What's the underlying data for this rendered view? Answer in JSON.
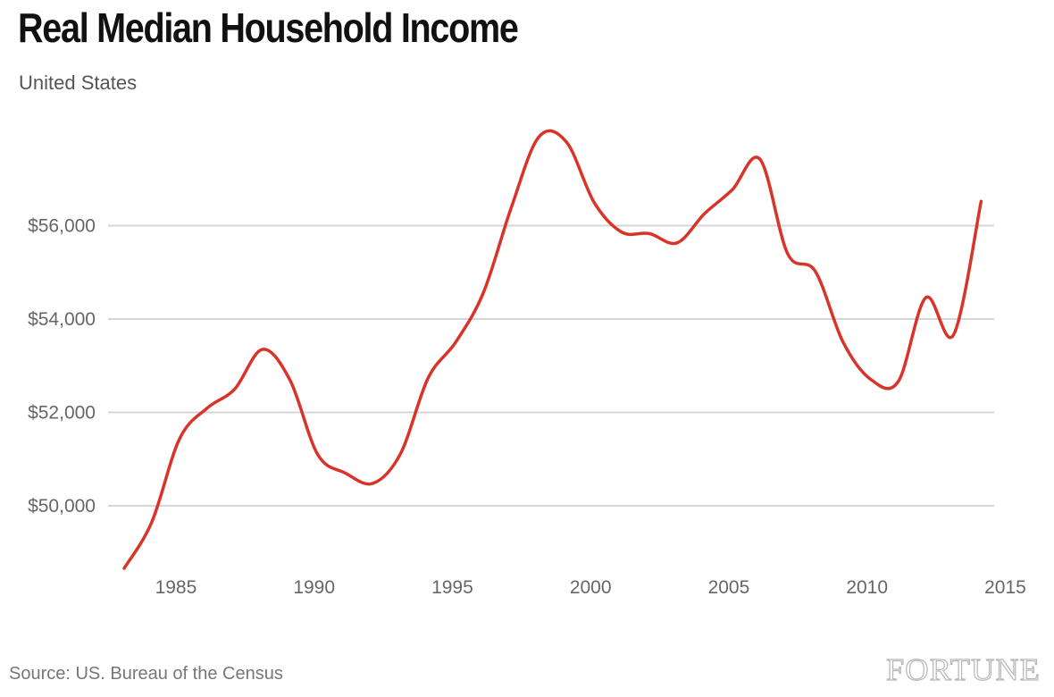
{
  "title": "Real Median Household Income",
  "subtitle": "United States",
  "source": "Source: US. Bureau of the Census",
  "logo_text": "FORTUNE",
  "colors": {
    "line": "#d8342a",
    "grid": "#d6d6d6",
    "tick_text": "#666666"
  },
  "chart_data": {
    "type": "line",
    "title": "Real Median Household Income",
    "subtitle": "United States",
    "xlabel": "",
    "ylabel": "",
    "x": [
      1984,
      1985,
      1986,
      1987,
      1988,
      1989,
      1990,
      1991,
      1992,
      1993,
      1994,
      1995,
      1996,
      1997,
      1998,
      1999,
      2000,
      2001,
      2002,
      2003,
      2004,
      2005,
      2006,
      2007,
      2008,
      2009,
      2010,
      2011,
      2012,
      2013,
      2014,
      2015
    ],
    "series": [
      {
        "values": [
          48660,
          49650,
          51430,
          52090,
          52500,
          53350,
          52690,
          51100,
          50700,
          50480,
          51120,
          52740,
          53510,
          54570,
          56380,
          57900,
          57790,
          56500,
          55860,
          55830,
          55630,
          56260,
          56770,
          57420,
          55400,
          55020,
          53510,
          52710,
          52660,
          54460,
          53660,
          56520
        ]
      }
    ],
    "xlim": [
      1984,
      2015
    ],
    "ylim": [
      48500,
      58200
    ],
    "x_ticks": [
      1985,
      1990,
      1995,
      2000,
      2005,
      2010,
      2015
    ],
    "x_tick_labels": [
      "1985",
      "1990",
      "1995",
      "2000",
      "2005",
      "2010",
      "2015"
    ],
    "y_ticks": [
      50000,
      52000,
      54000,
      56000
    ],
    "y_tick_labels": [
      "$50,000",
      "$52,000",
      "$54,000",
      "$56,000"
    ],
    "grid": "horizontal"
  }
}
